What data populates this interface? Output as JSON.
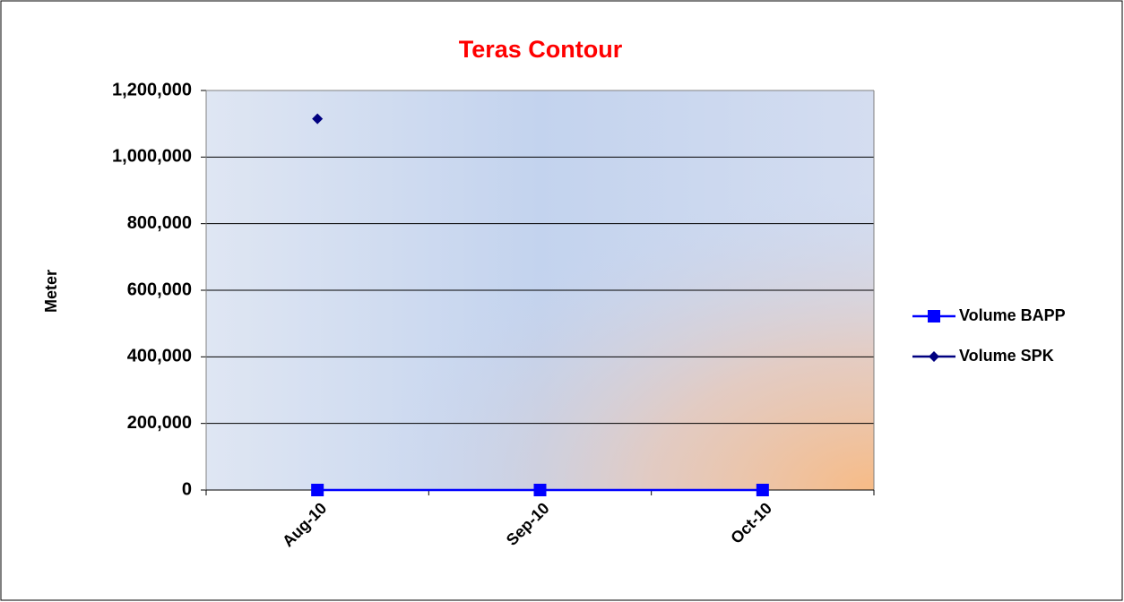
{
  "chart_data": {
    "type": "line",
    "title": "Teras Contour",
    "y_label": "Meter",
    "categories": [
      "Aug-10",
      "Sep-10",
      "Oct-10"
    ],
    "series": [
      {
        "name": "Volume BAPP",
        "color": "#0000ff",
        "marker": "square",
        "values": [
          0,
          0,
          0
        ]
      },
      {
        "name": "Volume SPK",
        "color": "#000080",
        "marker": "diamond",
        "values": [
          1115000,
          null,
          null
        ]
      }
    ],
    "ylim": [
      0,
      1200000
    ],
    "yticks": [
      0,
      {
        "value": 200000,
        "label": "200,000"
      },
      {
        "value": 400000,
        "label": "400,000"
      },
      {
        "value": 600000,
        "label": "600,000"
      },
      {
        "value": 800000,
        "label": "800,000"
      },
      {
        "value": 1000000,
        "label": "1,000,000"
      },
      {
        "value": 1200000,
        "label": "1,200,000"
      }
    ],
    "grid": true,
    "legend": "right"
  }
}
